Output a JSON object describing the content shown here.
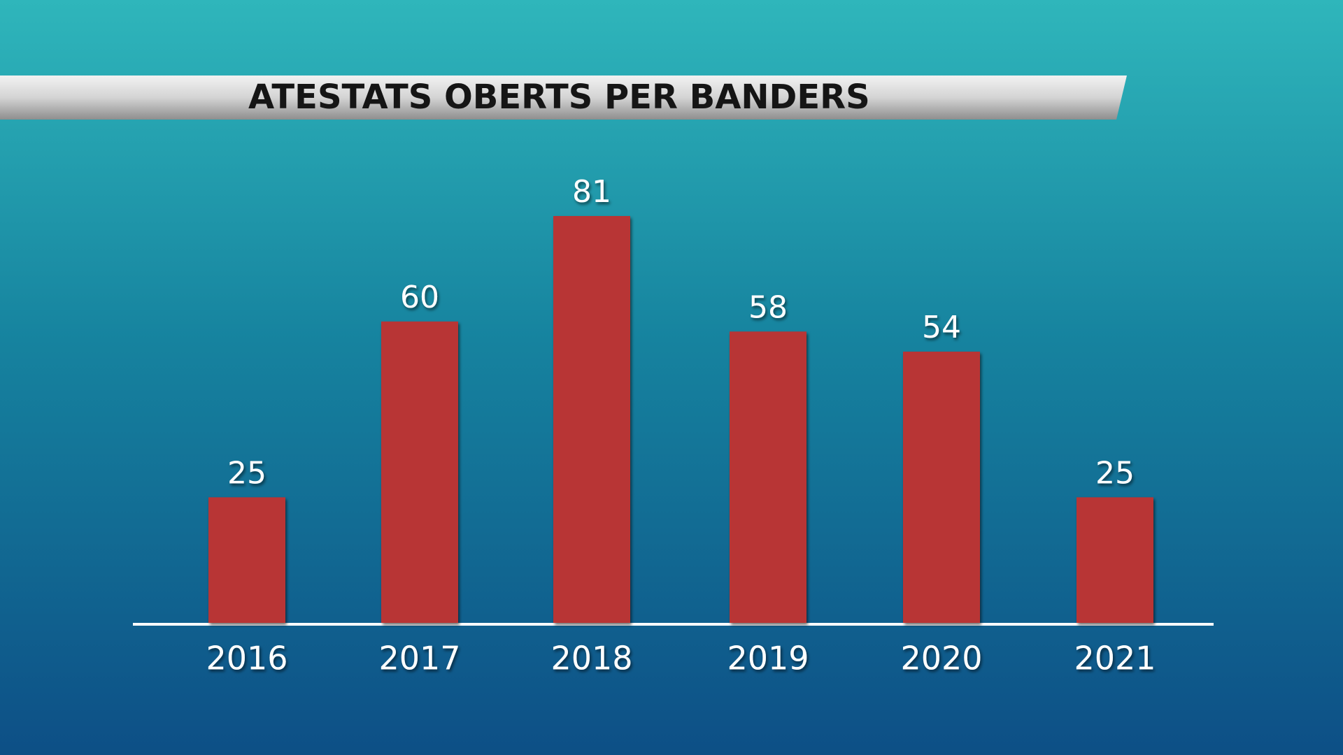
{
  "chart_data": {
    "type": "bar",
    "title": "ATESTATS OBERTS PER BANDERS",
    "categories": [
      "2016",
      "2017",
      "2018",
      "2019",
      "2020",
      "2021"
    ],
    "values": [
      25,
      60,
      81,
      58,
      54,
      25
    ],
    "color": "#b83535"
  }
}
